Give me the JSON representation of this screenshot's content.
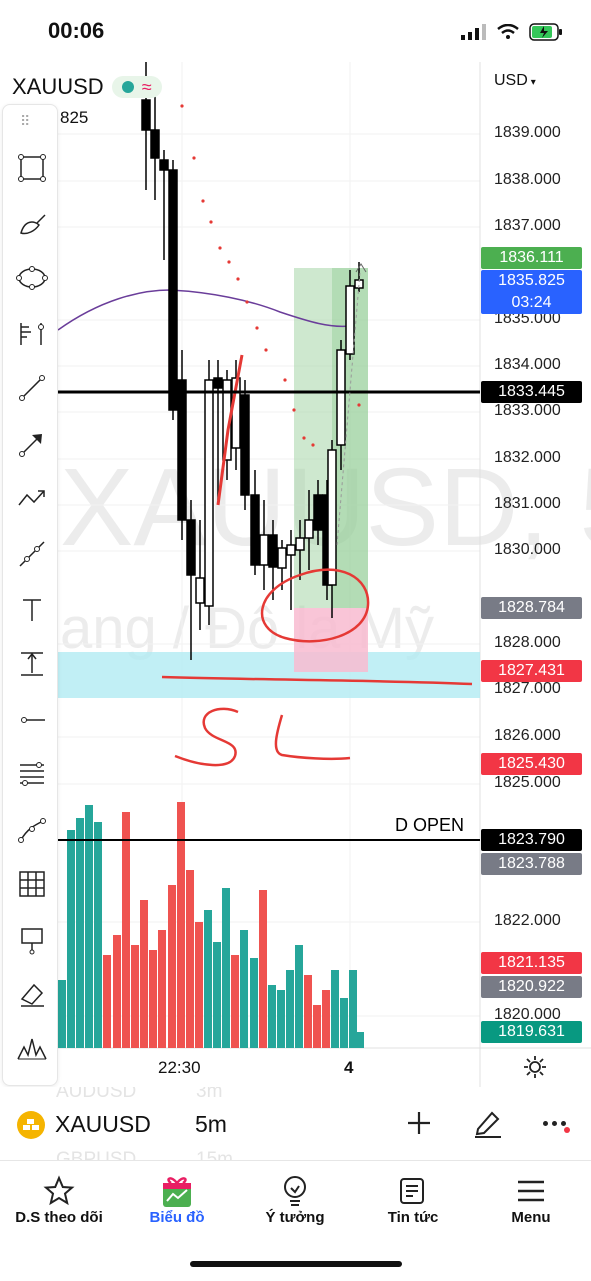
{
  "status_bar": {
    "time": "00:06"
  },
  "symbol_header": {
    "symbol": "XAUUSD",
    "partial_price": "825"
  },
  "currency_selector": {
    "label": "USD"
  },
  "watermark": {
    "text": "XAUUSD, 5",
    "subtext": "ang / Đô la Mỹ"
  },
  "price_axis": {
    "ticks": [
      "1839.000",
      "1838.000",
      "1837.000",
      "1835.000",
      "1834.000",
      "1833.000",
      "1832.000",
      "1831.000",
      "1830.000",
      "1828.000",
      "1827.000",
      "1826.000",
      "1825.000",
      "1822.000",
      "1820.000"
    ],
    "tags": [
      {
        "value": "1836.111",
        "color": "#4caf50"
      },
      {
        "value": "1835.825",
        "sub": "03:24",
        "color": "#2962ff"
      },
      {
        "value": "1833.445",
        "color": "#000000"
      },
      {
        "value": "1828.784",
        "color": "#787b86"
      },
      {
        "value": "1827.431",
        "color": "#f23645"
      },
      {
        "value": "1825.430",
        "color": "#f23645"
      },
      {
        "value": "1823.790",
        "color": "#000000"
      },
      {
        "value": "1823.788",
        "color": "#787b86"
      },
      {
        "value": "1821.135",
        "color": "#f23645"
      },
      {
        "value": "1820.922",
        "color": "#787b86"
      },
      {
        "value": "1819.631",
        "color": "#089981"
      }
    ]
  },
  "annotations": {
    "d_open": "D OPEN",
    "sl_text": "SL"
  },
  "time_axis": {
    "labels": [
      "22:30",
      "4"
    ]
  },
  "ticker_bar": {
    "symbol": "XAUUSD",
    "interval": "5m",
    "ghost_1": "AUDUSD",
    "ghost_1_tf": "3m",
    "ghost_2": "GBPUSD",
    "ghost_2_tf": "15m"
  },
  "nav": {
    "items": [
      {
        "label": "D.S theo dõi",
        "icon": "star-icon"
      },
      {
        "label": "Biểu đồ",
        "icon": "gift-chart-icon",
        "active": true
      },
      {
        "label": "Ý tưởng",
        "icon": "lightbulb-icon"
      },
      {
        "label": "Tin tức",
        "icon": "news-icon"
      },
      {
        "label": "Menu",
        "icon": "hamburger-icon"
      }
    ]
  },
  "colors": {
    "up": "#089981",
    "down": "#f23645",
    "accent": "#2962ff",
    "drawing": "#e53935"
  }
}
